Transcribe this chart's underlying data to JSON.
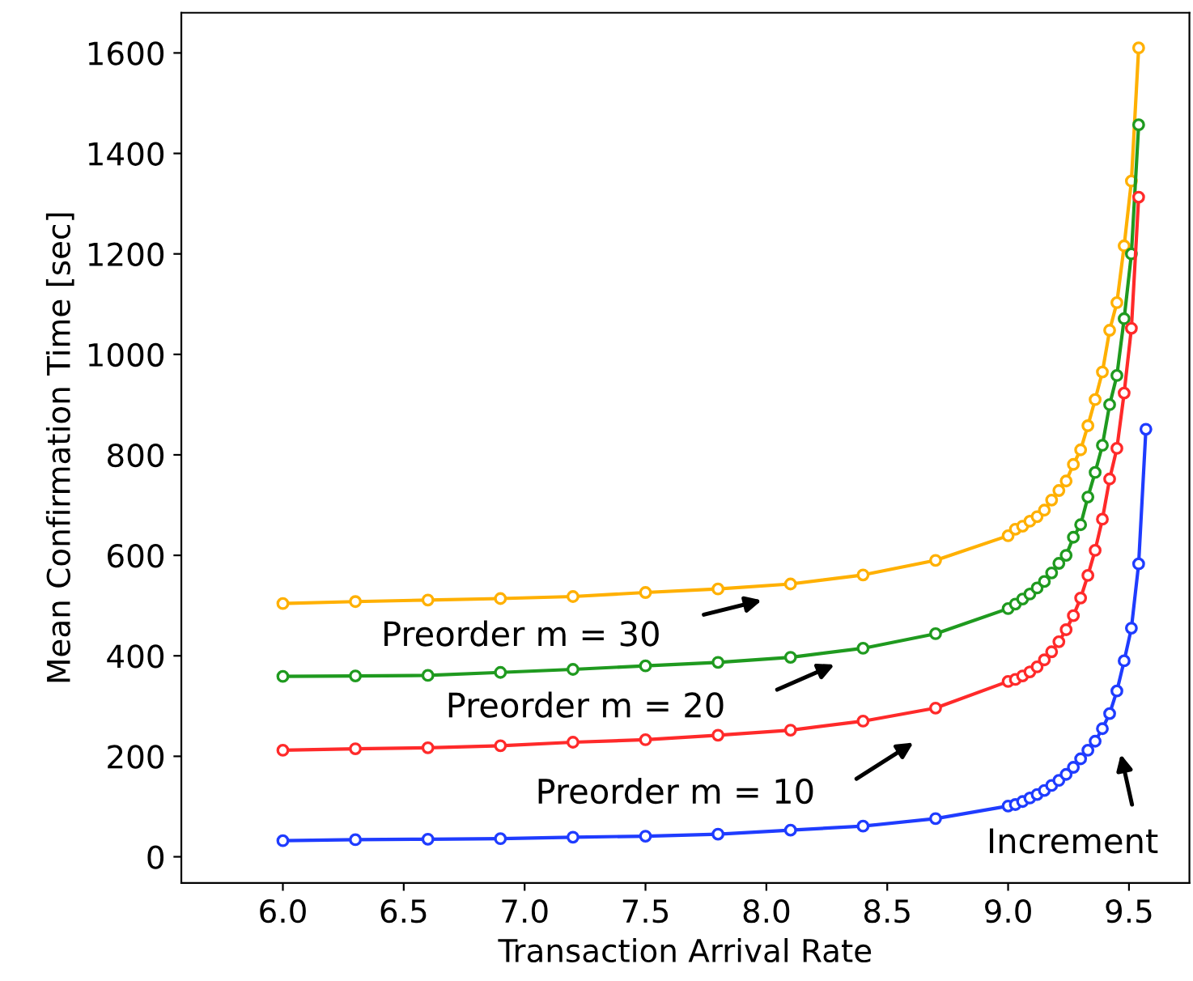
{
  "chart_data": {
    "type": "line",
    "xlabel": "Transaction Arrival Rate",
    "ylabel": "Mean Confirmation Time [sec]",
    "xlim": [
      5.58,
      9.75
    ],
    "ylim": [
      -52,
      1680
    ],
    "xticks": [
      {
        "value": 6,
        "label": "6.0"
      },
      6.5,
      {
        "value": 7,
        "label": "7.0"
      },
      7.5,
      {
        "value": 8,
        "label": "8.0"
      },
      8.5,
      {
        "value": 9,
        "label": "9.0"
      },
      9.5
    ],
    "yticks": [
      0,
      200,
      400,
      600,
      800,
      1000,
      1200,
      1400,
      1600
    ],
    "grid": false,
    "marker": "circle",
    "line_style": "solid",
    "series": [
      {
        "color": "#ffb000",
        "x": [
          6.0,
          6.3,
          6.6,
          6.9,
          7.2,
          7.5,
          7.8,
          8.1,
          8.4,
          8.7,
          9.0,
          9.03,
          9.06,
          9.09,
          9.12,
          9.15,
          9.18,
          9.21,
          9.24,
          9.27,
          9.3,
          9.33,
          9.36,
          9.39,
          9.42,
          9.45,
          9.48,
          9.51,
          9.54
        ],
        "values": [
          504,
          508,
          511,
          514,
          518,
          526,
          533,
          543,
          561,
          590,
          639,
          652,
          658,
          668,
          677,
          690,
          710,
          729,
          748,
          781,
          810,
          858,
          910,
          965,
          1048,
          1103,
          1216,
          1345,
          1610
        ]
      },
      {
        "color": "#1f9a1f",
        "x": [
          6.0,
          6.3,
          6.6,
          6.9,
          7.2,
          7.5,
          7.8,
          8.1,
          8.4,
          8.7,
          9.0,
          9.03,
          9.06,
          9.09,
          9.12,
          9.15,
          9.18,
          9.21,
          9.24,
          9.27,
          9.3,
          9.33,
          9.36,
          9.39,
          9.42,
          9.45,
          9.48,
          9.51,
          9.54
        ],
        "values": [
          359,
          360,
          361,
          367,
          373,
          380,
          387,
          397,
          415,
          444,
          494,
          503,
          513,
          523,
          535,
          548,
          565,
          584,
          600,
          636,
          661,
          716,
          765,
          819,
          900,
          958,
          1071,
          1200,
          1457
        ]
      },
      {
        "color": "#ff2a2a",
        "x": [
          6.0,
          6.3,
          6.6,
          6.9,
          7.2,
          7.5,
          7.8,
          8.1,
          8.4,
          8.7,
          9.0,
          9.03,
          9.06,
          9.09,
          9.12,
          9.15,
          9.18,
          9.21,
          9.24,
          9.27,
          9.3,
          9.33,
          9.36,
          9.39,
          9.42,
          9.45,
          9.48,
          9.51,
          9.54
        ],
        "values": [
          212,
          215,
          217,
          221,
          228,
          233,
          242,
          252,
          270,
          296,
          349,
          353,
          360,
          368,
          378,
          392,
          408,
          428,
          452,
          480,
          515,
          560,
          610,
          672,
          752,
          813,
          923,
          1052,
          1313
        ]
      },
      {
        "color": "#1f3cff",
        "x": [
          6.0,
          6.3,
          6.6,
          6.9,
          7.2,
          7.5,
          7.8,
          8.1,
          8.4,
          8.7,
          9.0,
          9.03,
          9.06,
          9.09,
          9.12,
          9.15,
          9.18,
          9.21,
          9.24,
          9.27,
          9.3,
          9.33,
          9.36,
          9.39,
          9.42,
          9.45,
          9.48,
          9.51,
          9.54,
          9.57
        ],
        "values": [
          32,
          34,
          35,
          36,
          39,
          41,
          45,
          53,
          61,
          76,
          101,
          104,
          110,
          117,
          124,
          132,
          142,
          152,
          164,
          178,
          195,
          212,
          230,
          255,
          285,
          330,
          390,
          455,
          583,
          851
        ]
      }
    ],
    "annotations": [
      "Preorder m = 30",
      "Preorder m = 20",
      "Preorder m = 10",
      "Increment"
    ]
  }
}
